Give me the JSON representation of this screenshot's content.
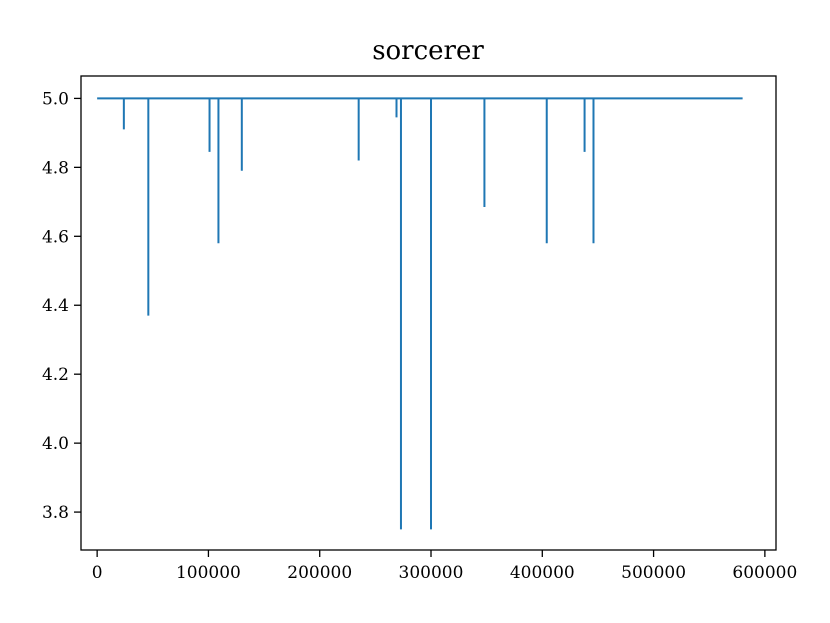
{
  "chart_data": {
    "type": "line",
    "title": "sorcerer",
    "xlabel": "",
    "ylabel": "",
    "xlim": [
      -14500,
      610000
    ],
    "ylim": [
      3.69,
      5.065
    ],
    "x_ticks": [
      0,
      100000,
      200000,
      300000,
      400000,
      500000,
      600000
    ],
    "x_tick_labels": [
      "0",
      "100000",
      "200000",
      "300000",
      "400000",
      "500000",
      "600000"
    ],
    "y_ticks": [
      3.8,
      4.0,
      4.2,
      4.4,
      4.6,
      4.8,
      5.0
    ],
    "y_tick_labels": [
      "3.8",
      "4.0",
      "4.2",
      "4.4",
      "4.6",
      "4.8",
      "5.0"
    ],
    "grid": false,
    "series": [
      {
        "color": "#1f77b4",
        "x": [
          0,
          24000,
          24000,
          24001,
          46000,
          46000,
          46001,
          101000,
          101000,
          101001,
          109000,
          109000,
          109001,
          130000,
          130000,
          130001,
          235000,
          235000,
          235001,
          269000,
          269000,
          269001,
          273000,
          273000,
          273001,
          300000,
          300000,
          300001,
          348000,
          348000,
          348001,
          404000,
          404000,
          404001,
          438000,
          438000,
          438001,
          446000,
          446000,
          446001,
          580000
        ],
        "y": [
          5.0,
          5.0,
          4.91,
          5.0,
          5.0,
          4.37,
          5.0,
          5.0,
          4.845,
          5.0,
          5.0,
          4.58,
          5.0,
          5.0,
          4.79,
          5.0,
          5.0,
          4.82,
          5.0,
          5.0,
          4.945,
          5.0,
          5.0,
          3.75,
          5.0,
          5.0,
          3.75,
          5.0,
          5.0,
          4.685,
          5.0,
          5.0,
          4.58,
          5.0,
          5.0,
          4.845,
          5.0,
          5.0,
          4.58,
          5.0,
          5.0
        ]
      }
    ]
  }
}
